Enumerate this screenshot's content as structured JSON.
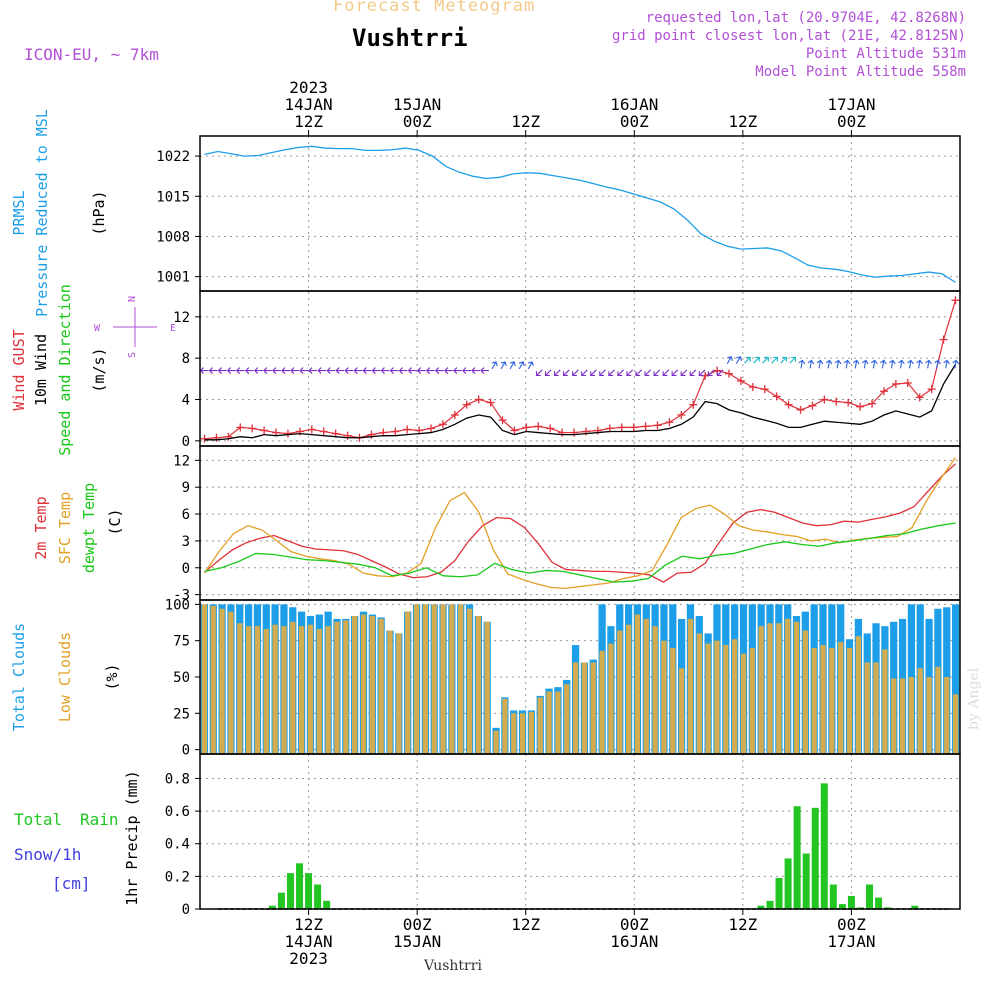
{
  "header": {
    "forecast_title": "Forecast Meteogram",
    "location": "Vushtrri",
    "model": "ICON-EU, ~ 7km",
    "requested": "requested lon,lat (20.9704E, 42.8268N)",
    "grid_point": "grid point closest lon,lat (21E, 42.8125N)",
    "point_altitude": "Point Altitude 531m",
    "model_altitude": "Model Point Altitude 558m",
    "footer_location": "Vushtrri",
    "credit": "by Angel"
  },
  "colors": {
    "pressure": "#1c9ee8",
    "gust": "#e0303a",
    "wind": "#000000",
    "temp": "#e0303a",
    "sfc_temp": "#e3a024",
    "dewpt": "#19c819",
    "total_clouds": "#1c9ee8",
    "low_clouds": "#d4ac50",
    "rain": "#22c522",
    "snow": "#4040e0",
    "annotation": "#b24fd6"
  },
  "time_axis": {
    "top_labels": [
      {
        "t": 12,
        "lines": [
          "2023",
          "14JAN",
          "12Z"
        ]
      },
      {
        "t": 24,
        "lines": [
          "15JAN",
          "00Z"
        ]
      },
      {
        "t": 36,
        "lines": [
          "12Z"
        ]
      },
      {
        "t": 48,
        "lines": [
          "16JAN",
          "00Z"
        ]
      },
      {
        "t": 60,
        "lines": [
          "12Z"
        ]
      },
      {
        "t": 72,
        "lines": [
          "17JAN",
          "00Z"
        ]
      }
    ],
    "bottom_labels": [
      {
        "t": 12,
        "lines": [
          "12Z",
          "14JAN",
          "2023"
        ]
      },
      {
        "t": 24,
        "lines": [
          "00Z",
          "15JAN"
        ]
      },
      {
        "t": 36,
        "lines": [
          "12Z"
        ]
      },
      {
        "t": 48,
        "lines": [
          "00Z",
          "16JAN"
        ]
      },
      {
        "t": 60,
        "lines": [
          "12Z"
        ]
      },
      {
        "t": 72,
        "lines": [
          "00Z",
          "17JAN"
        ]
      }
    ]
  },
  "chart_data": [
    {
      "type": "line",
      "panel": "pressure",
      "ylabel_lines": [
        "PRMSL",
        "Pressure Reduced to MSL"
      ],
      "unit": "(hPa)",
      "yticks": [
        1001,
        1008,
        1015,
        1022
      ],
      "ylim": [
        998.5,
        1025.5
      ],
      "series": [
        {
          "values": [
            1022.3,
            1022.8,
            1022.4,
            1022.0,
            1022.1,
            1022.6,
            1023.1,
            1023.5,
            1023.7,
            1023.4,
            1023.3,
            1023.3,
            1023.0,
            1023.0,
            1023.1,
            1023.4,
            1023.0,
            1022.0,
            1020.2,
            1019.2,
            1018.5,
            1018.1,
            1018.3,
            1018.9,
            1019.1,
            1019.0,
            1018.6,
            1018.2,
            1017.8,
            1017.2,
            1016.6,
            1016.1,
            1015.4,
            1014.7,
            1014.0,
            1012.8,
            1010.9,
            1008.5,
            1007.2,
            1006.3,
            1005.8,
            1005.9,
            1006.0,
            1005.5,
            1004.3,
            1003.0,
            1002.5,
            1002.3,
            1001.9,
            1001.3,
            1000.9,
            1001.1,
            1001.2,
            1001.5,
            1001.8,
            1001.5,
            1000.0
          ]
        }
      ]
    },
    {
      "type": "line",
      "panel": "wind",
      "ylabel_lines": [
        "Wind GUST",
        "10m Wind",
        "Speed and Direction"
      ],
      "unit": "(m/s)",
      "yticks": [
        0,
        4,
        8,
        12
      ],
      "ylim": [
        -0.5,
        14.5
      ],
      "compass": [
        "N",
        "S",
        "W",
        "E"
      ],
      "series": [
        {
          "name": "Wind GUST",
          "values": [
            0.2,
            0.3,
            0.4,
            1.3,
            1.2,
            1.0,
            0.8,
            0.7,
            0.9,
            1.1,
            0.9,
            0.7,
            0.5,
            0.3,
            0.6,
            0.8,
            0.9,
            1.1,
            1.0,
            1.2,
            1.6,
            2.5,
            3.5,
            4.0,
            3.7,
            2.0,
            1.0,
            1.3,
            1.4,
            1.2,
            0.8,
            0.8,
            0.9,
            1.0,
            1.2,
            1.3,
            1.3,
            1.4,
            1.5,
            1.8,
            2.5,
            3.5,
            6.3,
            6.8,
            6.5,
            5.8,
            5.2,
            5.0,
            4.3,
            3.5,
            3.0,
            3.4,
            4.0,
            3.8,
            3.7,
            3.3,
            3.6,
            4.8,
            5.5,
            5.6,
            4.2,
            5.0,
            9.8,
            13.6
          ]
        },
        {
          "name": "10m Wind",
          "values": [
            0.1,
            0.1,
            0.2,
            0.4,
            0.3,
            0.6,
            0.5,
            0.6,
            0.7,
            0.6,
            0.5,
            0.4,
            0.3,
            0.3,
            0.4,
            0.5,
            0.5,
            0.6,
            0.7,
            0.8,
            1.1,
            1.6,
            2.2,
            2.5,
            2.3,
            1.0,
            0.6,
            0.9,
            0.8,
            0.7,
            0.6,
            0.6,
            0.7,
            0.8,
            0.9,
            0.9,
            0.9,
            1.0,
            1.0,
            1.2,
            1.6,
            2.3,
            3.8,
            3.6,
            3.0,
            2.7,
            2.3,
            2.0,
            1.7,
            1.3,
            1.3,
            1.6,
            1.9,
            1.8,
            1.7,
            1.6,
            1.9,
            2.5,
            2.9,
            2.6,
            2.3,
            2.9,
            5.5,
            7.4
          ]
        }
      ]
    },
    {
      "type": "line",
      "panel": "temperature",
      "ylabel_lines": [
        "2m Temp",
        "SFC Temp",
        "dewpt Temp"
      ],
      "unit": "(C)",
      "yticks": [
        -3,
        0,
        3,
        6,
        9,
        12
      ],
      "ylim": [
        -3.6,
        13.6
      ],
      "series": [
        {
          "name": "2m Temp",
          "values": [
            -0.5,
            0.8,
            2.0,
            2.8,
            3.3,
            3.6,
            3.0,
            2.4,
            2.1,
            2.0,
            1.9,
            1.5,
            0.8,
            0.1,
            -0.7,
            -1.1,
            -1.0,
            -0.5,
            0.8,
            3.0,
            4.7,
            5.6,
            5.5,
            4.5,
            2.7,
            0.6,
            -0.2,
            -0.3,
            -0.4,
            -0.4,
            -0.5,
            -0.6,
            -0.8,
            -1.6,
            -0.6,
            -0.5,
            0.5,
            2.8,
            5.0,
            6.2,
            6.5,
            6.2,
            5.6,
            5.0,
            4.7,
            4.8,
            5.2,
            5.1,
            5.4,
            5.7,
            6.1,
            6.8,
            8.5,
            10.2,
            11.6
          ]
        },
        {
          "name": "SFC Temp",
          "values": [
            -0.6,
            1.8,
            3.8,
            4.7,
            4.2,
            3.0,
            1.8,
            1.3,
            1.0,
            0.8,
            0.4,
            -0.6,
            -0.9,
            -1.0,
            -0.6,
            0.5,
            4.5,
            7.5,
            8.4,
            6.2,
            2.0,
            -0.7,
            -1.3,
            -1.8,
            -2.2,
            -2.3,
            -2.1,
            -1.9,
            -1.7,
            -1.2,
            -0.9,
            -0.3,
            2.5,
            5.6,
            6.6,
            7.0,
            6.0,
            4.7,
            4.2,
            4.0,
            3.7,
            3.5,
            3.0,
            3.2,
            2.8,
            3.1,
            3.3,
            3.4,
            3.5,
            4.5,
            7.5,
            10.0,
            12.3
          ]
        },
        {
          "name": "dewpt Temp",
          "values": [
            -0.4,
            0.0,
            0.7,
            1.6,
            1.5,
            1.2,
            0.9,
            0.8,
            0.6,
            0.4,
            0.0,
            -0.9,
            -0.6,
            0.0,
            -0.9,
            -1.0,
            -0.8,
            0.5,
            -0.2,
            -0.6,
            -0.3,
            -0.4,
            -0.8,
            -1.2,
            -1.6,
            -1.5,
            -1.2,
            0.3,
            1.3,
            1.0,
            1.4,
            1.6,
            2.1,
            2.6,
            2.9,
            2.6,
            2.4,
            2.8,
            3.0,
            3.3,
            3.6,
            3.8,
            4.3,
            4.7,
            5.0
          ]
        }
      ]
    },
    {
      "type": "bar",
      "panel": "clouds",
      "ylabel_lines": [
        "Total Clouds",
        "Low Clouds"
      ],
      "unit": "(%)",
      "yticks": [
        0,
        25,
        50,
        75,
        100
      ],
      "ylim": [
        -3,
        103
      ],
      "series": [
        {
          "name": "Total Clouds",
          "values": [
            100,
            100,
            100,
            100,
            100,
            100,
            100,
            100,
            100,
            100,
            98,
            95,
            92,
            93,
            95,
            90,
            90,
            92,
            95,
            93,
            91,
            82,
            80,
            95,
            100,
            100,
            100,
            100,
            100,
            100,
            100,
            92,
            88,
            15,
            36,
            27,
            27,
            27,
            37,
            42,
            43,
            48,
            72,
            60,
            62,
            100,
            85,
            100,
            100,
            100,
            100,
            100,
            100,
            100,
            90,
            100,
            92,
            80,
            100,
            100,
            100,
            100,
            100,
            100,
            100,
            100,
            100,
            92,
            95,
            100,
            100,
            100,
            100,
            76,
            90,
            80,
            87,
            85,
            88,
            90,
            100,
            100,
            90,
            97,
            98,
            100
          ]
        },
        {
          "name": "Low Clouds",
          "values": [
            100,
            99,
            97,
            95,
            87,
            85,
            85,
            83,
            86,
            85,
            88,
            85,
            86,
            83,
            85,
            88,
            89,
            92,
            93,
            92,
            90,
            82,
            80,
            95,
            100,
            100,
            100,
            100,
            100,
            100,
            97,
            92,
            88,
            13,
            35,
            25,
            25,
            26,
            36,
            40,
            40,
            45,
            60,
            60,
            60,
            68,
            73,
            82,
            86,
            93,
            90,
            85,
            75,
            70,
            56,
            90,
            80,
            73,
            75,
            72,
            76,
            66,
            70,
            85,
            87,
            87,
            90,
            88,
            82,
            70,
            72,
            70,
            74,
            70,
            78,
            60,
            60,
            69,
            49,
            49,
            50,
            56,
            50,
            57,
            50,
            38
          ]
        }
      ]
    },
    {
      "type": "bar",
      "panel": "precip",
      "ylabel_lines": [
        "1hr Precip (mm)"
      ],
      "left_labels": [
        "Total",
        "Rain",
        "Snow/1h",
        "[cm]"
      ],
      "yticks": [
        0,
        0.2,
        0.4,
        0.6,
        0.8
      ],
      "ylim": [
        0,
        0.95
      ],
      "series": [
        {
          "name": "Total Rain",
          "x": [
            8,
            9,
            10,
            11,
            12,
            13,
            14,
            62,
            63,
            64,
            65,
            66,
            67,
            68,
            69,
            70,
            71,
            72,
            73,
            74,
            75,
            76,
            77,
            78,
            79
          ],
          "values": [
            0.02,
            0.1,
            0.22,
            0.28,
            0.22,
            0.15,
            0.05,
            0.02,
            0.05,
            0.19,
            0.31,
            0.63,
            0.34,
            0.62,
            0.77,
            0.15,
            0.03,
            0.08,
            0.01,
            0.15,
            0.07,
            0.01,
            0.0,
            0.0,
            0.02
          ]
        }
      ]
    }
  ]
}
